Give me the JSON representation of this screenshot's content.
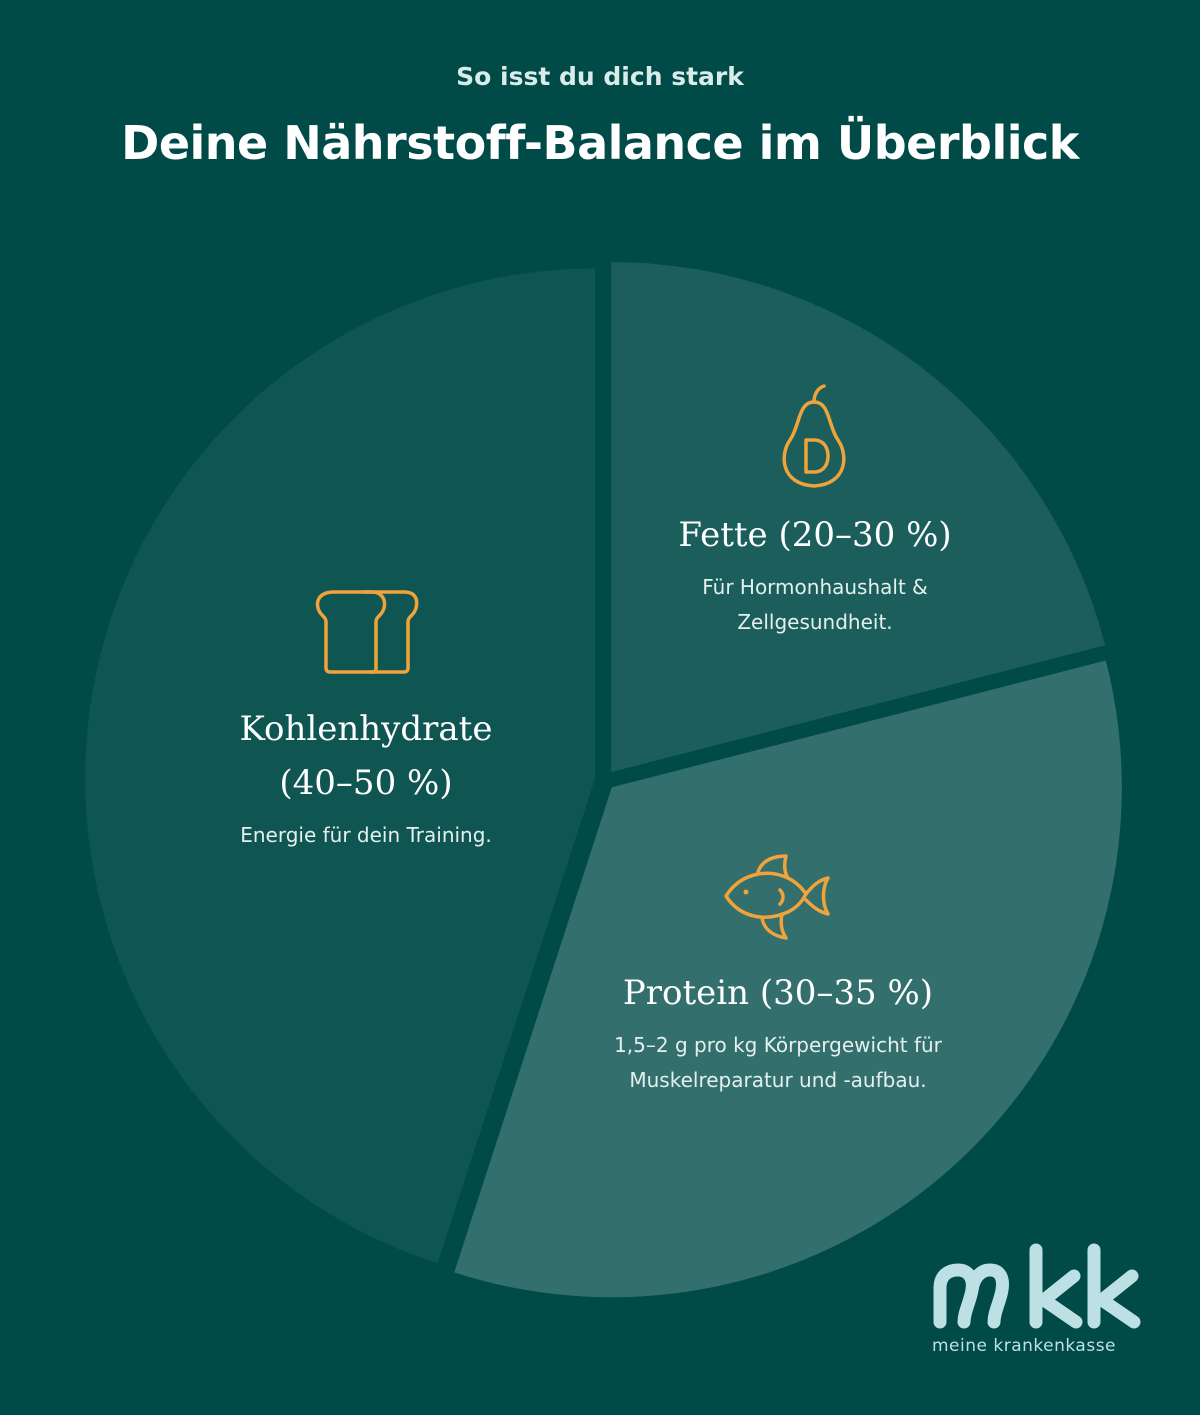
{
  "header": {
    "subtitle": "So isst du dich stark",
    "title": "Deine Nährstoff-Balance im Überblick"
  },
  "chart_data": {
    "type": "pie",
    "title": "Deine Nährstoff-Balance im Überblick",
    "slices": [
      {
        "name": "Kohlenhydrate",
        "range": "40–50 %",
        "value": 45,
        "color": "#0f5552",
        "description": "Energie für dein Training."
      },
      {
        "name": "Fette",
        "range": "20–30 %",
        "value": 21,
        "color": "#1b5e5b",
        "description": "Für Hormonhaushalt & Zellgesundheit."
      },
      {
        "name": "Protein",
        "range": "30–35 %",
        "value": 34,
        "color": "#336f6d",
        "description": "1,5–2 g pro kg Körpergewicht für Muskelreparatur und -aufbau."
      }
    ],
    "icon_color": "#f0a33a"
  },
  "labels": {
    "carbs": {
      "name": "Kohlenhydrate",
      "range": "(40–50 %)",
      "desc": "Energie für dein Training.",
      "icon": "bread-icon"
    },
    "fats": {
      "name": "Fette (20–30 %)",
      "desc_line1": "Für Hormonhaushalt &",
      "desc_line2": "Zellgesundheit.",
      "icon": "pear-icon"
    },
    "protein": {
      "name": "Protein (30–35 %)",
      "desc_line1": "1,5–2 g pro kg Körpergewicht für",
      "desc_line2": "Muskelreparatur und -aufbau.",
      "icon": "fish-icon"
    }
  },
  "logo": {
    "mark": "mkk",
    "tagline": "meine krankenkasse",
    "color": "#bde0e4"
  }
}
